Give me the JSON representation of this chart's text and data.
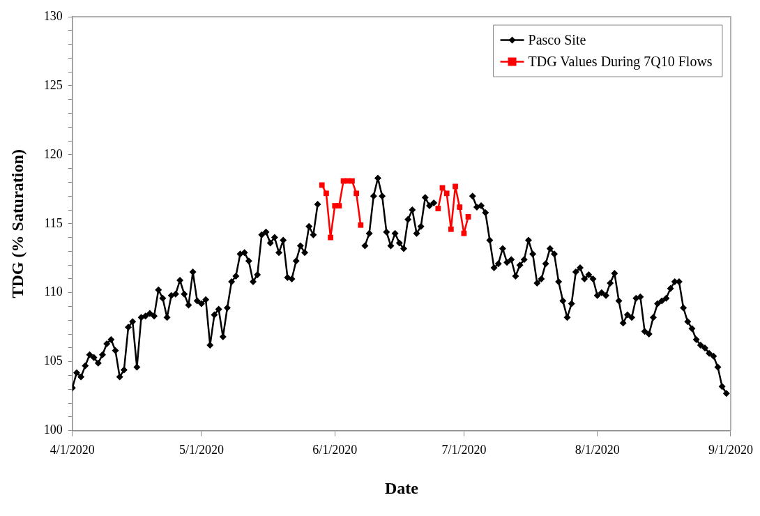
{
  "chart_data": {
    "type": "line",
    "xlabel": "Date",
    "ylabel": "TDG (% Saturation)",
    "x": [
      "2020-04-01",
      "2020-04-02",
      "2020-04-03",
      "2020-04-04",
      "2020-04-05",
      "2020-04-06",
      "2020-04-07",
      "2020-04-08",
      "2020-04-09",
      "2020-04-10",
      "2020-04-11",
      "2020-04-12",
      "2020-04-13",
      "2020-04-14",
      "2020-04-15",
      "2020-04-16",
      "2020-04-17",
      "2020-04-18",
      "2020-04-19",
      "2020-04-20",
      "2020-04-21",
      "2020-04-22",
      "2020-04-23",
      "2020-04-24",
      "2020-04-25",
      "2020-04-26",
      "2020-04-27",
      "2020-04-28",
      "2020-04-29",
      "2020-04-30",
      "2020-05-01",
      "2020-05-02",
      "2020-05-03",
      "2020-05-04",
      "2020-05-05",
      "2020-05-06",
      "2020-05-07",
      "2020-05-08",
      "2020-05-09",
      "2020-05-10",
      "2020-05-11",
      "2020-05-12",
      "2020-05-13",
      "2020-05-14",
      "2020-05-15",
      "2020-05-16",
      "2020-05-17",
      "2020-05-18",
      "2020-05-19",
      "2020-05-20",
      "2020-05-21",
      "2020-05-22",
      "2020-05-23",
      "2020-05-24",
      "2020-05-25",
      "2020-05-26",
      "2020-05-27",
      "2020-05-28",
      "2020-05-29",
      "2020-05-30",
      "2020-05-31",
      "2020-06-01",
      "2020-06-02",
      "2020-06-03",
      "2020-06-04",
      "2020-06-05",
      "2020-06-06",
      "2020-06-07",
      "2020-06-08",
      "2020-06-09",
      "2020-06-10",
      "2020-06-11",
      "2020-06-12",
      "2020-06-13",
      "2020-06-14",
      "2020-06-15",
      "2020-06-16",
      "2020-06-17",
      "2020-06-18",
      "2020-06-19",
      "2020-06-20",
      "2020-06-21",
      "2020-06-22",
      "2020-06-23",
      "2020-06-24",
      "2020-06-25",
      "2020-06-26",
      "2020-06-27",
      "2020-06-28",
      "2020-06-29",
      "2020-06-30",
      "2020-07-01",
      "2020-07-02",
      "2020-07-03",
      "2020-07-04",
      "2020-07-05",
      "2020-07-06",
      "2020-07-07",
      "2020-07-08",
      "2020-07-09",
      "2020-07-10",
      "2020-07-11",
      "2020-07-12",
      "2020-07-13",
      "2020-07-14",
      "2020-07-15",
      "2020-07-16",
      "2020-07-17",
      "2020-07-18",
      "2020-07-19",
      "2020-07-20",
      "2020-07-21",
      "2020-07-22",
      "2020-07-23",
      "2020-07-24",
      "2020-07-25",
      "2020-07-26",
      "2020-07-27",
      "2020-07-28",
      "2020-07-29",
      "2020-07-30",
      "2020-07-31",
      "2020-08-01",
      "2020-08-02",
      "2020-08-03",
      "2020-08-04",
      "2020-08-05",
      "2020-08-06",
      "2020-08-07",
      "2020-08-08",
      "2020-08-09",
      "2020-08-10",
      "2020-08-11",
      "2020-08-12",
      "2020-08-13",
      "2020-08-14",
      "2020-08-15",
      "2020-08-16",
      "2020-08-17",
      "2020-08-18",
      "2020-08-19",
      "2020-08-20",
      "2020-08-21",
      "2020-08-22",
      "2020-08-23",
      "2020-08-24",
      "2020-08-25",
      "2020-08-26",
      "2020-08-27",
      "2020-08-28",
      "2020-08-29",
      "2020-08-30",
      "2020-08-31"
    ],
    "series": [
      {
        "name": "Pasco Site",
        "color": "#000000",
        "marker": "diamond",
        "values": [
          103.1,
          104.2,
          103.9,
          104.7,
          105.5,
          105.3,
          104.9,
          105.5,
          106.3,
          106.6,
          105.8,
          103.9,
          104.4,
          107.5,
          107.9,
          104.6,
          108.2,
          108.3,
          108.5,
          108.3,
          110.2,
          109.6,
          108.2,
          109.8,
          109.9,
          110.9,
          109.9,
          109.1,
          111.5,
          109.4,
          109.2,
          109.5,
          106.2,
          108.4,
          108.8,
          106.8,
          108.9,
          110.8,
          111.2,
          112.8,
          112.9,
          112.3,
          110.8,
          111.3,
          114.2,
          114.4,
          113.6,
          114.0,
          112.9,
          113.8,
          111.1,
          111.0,
          112.3,
          113.4,
          112.9,
          114.8,
          114.2,
          116.4,
          null,
          null,
          null,
          null,
          null,
          null,
          null,
          null,
          null,
          null,
          113.4,
          114.3,
          117.0,
          118.3,
          117.0,
          114.4,
          113.4,
          114.3,
          113.6,
          113.2,
          115.3,
          116.0,
          114.3,
          114.8,
          116.9,
          116.3,
          116.5,
          null,
          null,
          null,
          null,
          null,
          null,
          null,
          null,
          117.0,
          116.2,
          116.3,
          115.8,
          113.8,
          111.8,
          112.1,
          113.2,
          112.2,
          112.4,
          111.2,
          112.0,
          112.4,
          113.8,
          112.8,
          110.7,
          111.0,
          112.1,
          113.2,
          112.8,
          110.8,
          109.4,
          108.2,
          109.2,
          111.5,
          111.8,
          111.0,
          111.3,
          111.0,
          109.8,
          110.0,
          109.8,
          110.7,
          111.4,
          109.4,
          107.8,
          108.4,
          108.2,
          109.6,
          109.7,
          107.2,
          107.0,
          108.2,
          109.2,
          109.4,
          109.6,
          110.3,
          110.8,
          110.8,
          108.9,
          107.9,
          107.4,
          106.6,
          106.2,
          106.0,
          105.6,
          105.4,
          104.6,
          103.2,
          102.7
        ]
      },
      {
        "name": "TDG Values During 7Q10 Flows",
        "color": "#ff0000",
        "marker": "square",
        "values": [
          null,
          null,
          null,
          null,
          null,
          null,
          null,
          null,
          null,
          null,
          null,
          null,
          null,
          null,
          null,
          null,
          null,
          null,
          null,
          null,
          null,
          null,
          null,
          null,
          null,
          null,
          null,
          null,
          null,
          null,
          null,
          null,
          null,
          null,
          null,
          null,
          null,
          null,
          null,
          null,
          null,
          null,
          null,
          null,
          null,
          null,
          null,
          null,
          null,
          null,
          null,
          null,
          null,
          null,
          null,
          null,
          null,
          null,
          117.8,
          117.2,
          114.0,
          116.3,
          116.3,
          118.1,
          118.1,
          118.1,
          117.2,
          114.9,
          null,
          null,
          null,
          null,
          null,
          null,
          null,
          null,
          null,
          null,
          null,
          null,
          null,
          null,
          null,
          null,
          null,
          116.1,
          117.6,
          117.2,
          114.6,
          117.7,
          116.2,
          114.3,
          115.5,
          null,
          null,
          null,
          null,
          null,
          null,
          null,
          null,
          null,
          null,
          null,
          null,
          null,
          null,
          null,
          null,
          null,
          null,
          null,
          null,
          null,
          null,
          null,
          null,
          null,
          null,
          null,
          null,
          null,
          null,
          null,
          null,
          null,
          null,
          null,
          null,
          null,
          null,
          null,
          null,
          null,
          null,
          null,
          null,
          null,
          null,
          null,
          null,
          null,
          null,
          null,
          null,
          null,
          null,
          null,
          null,
          null,
          null,
          null,
          null
        ]
      }
    ],
    "xlim": [
      "2020-04-01",
      "2020-09-01"
    ],
    "xticks": [
      {
        "value": "2020-04-01",
        "label": "4/1/2020"
      },
      {
        "value": "2020-05-01",
        "label": "5/1/2020"
      },
      {
        "value": "2020-06-01",
        "label": "6/1/2020"
      },
      {
        "value": "2020-07-01",
        "label": "7/1/2020"
      },
      {
        "value": "2020-08-01",
        "label": "8/1/2020"
      },
      {
        "value": "2020-09-01",
        "label": "9/1/2020"
      }
    ],
    "ylim": [
      100,
      130
    ],
    "yticks": [
      100,
      {
        "value": 101,
        "label": null
      },
      {
        "value": 102,
        "label": null
      },
      {
        "value": 103,
        "label": null
      },
      {
        "value": 104,
        "label": null
      },
      105,
      {
        "value": 106,
        "label": null
      },
      {
        "value": 107,
        "label": null
      },
      {
        "value": 108,
        "label": null
      },
      {
        "value": 109,
        "label": null
      },
      110,
      {
        "value": 111,
        "label": null
      },
      {
        "value": 112,
        "label": null
      },
      {
        "value": 113,
        "label": null
      },
      {
        "value": 114,
        "label": null
      },
      115,
      {
        "value": 116,
        "label": null
      },
      {
        "value": 117,
        "label": null
      },
      {
        "value": 118,
        "label": null
      },
      {
        "value": 119,
        "label": null
      },
      120,
      {
        "value": 121,
        "label": null
      },
      {
        "value": 122,
        "label": null
      },
      {
        "value": 123,
        "label": null
      },
      {
        "value": 124,
        "label": null
      },
      125,
      {
        "value": 126,
        "label": null
      },
      {
        "value": 127,
        "label": null
      },
      {
        "value": 128,
        "label": null
      },
      {
        "value": 129,
        "label": null
      },
      130
    ],
    "grid": false,
    "legend": "top right",
    "line_style": "solid"
  }
}
